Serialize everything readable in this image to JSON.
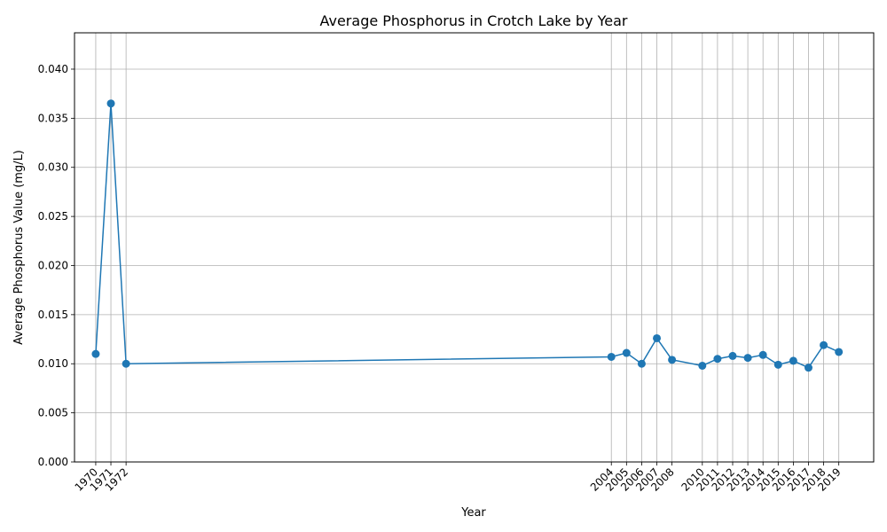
{
  "chart_data": {
    "type": "line",
    "title": "Average Phosphorus in Crotch Lake by Year",
    "xlabel": "Year",
    "ylabel": "Average Phosphorus Value (mg/L)",
    "ylim": [
      0,
      0.0437
    ],
    "xlim": [
      1968.6,
      2021.3
    ],
    "y_ticks": [
      "0.000",
      "0.005",
      "0.010",
      "0.015",
      "0.020",
      "0.025",
      "0.030",
      "0.035",
      "0.040"
    ],
    "x_ticks": [
      "1970",
      "1971",
      "1972",
      "2004",
      "2005",
      "2006",
      "2007",
      "2008",
      "2010",
      "2011",
      "2012",
      "2013",
      "2014",
      "2015",
      "2016",
      "2017",
      "2018",
      "2019"
    ],
    "grid": true,
    "line_color": "#1f77b4",
    "x": [
      1970,
      1971,
      1972,
      2004,
      2005,
      2006,
      2007,
      2008,
      2010,
      2011,
      2012,
      2013,
      2014,
      2015,
      2016,
      2017,
      2018,
      2019
    ],
    "values": [
      0.011,
      0.0365,
      0.01,
      0.0107,
      0.0111,
      0.01,
      0.0126,
      0.0104,
      0.0098,
      0.0105,
      0.0108,
      0.0106,
      0.0109,
      0.0099,
      0.0103,
      0.0096,
      0.0119,
      0.0112
    ]
  }
}
